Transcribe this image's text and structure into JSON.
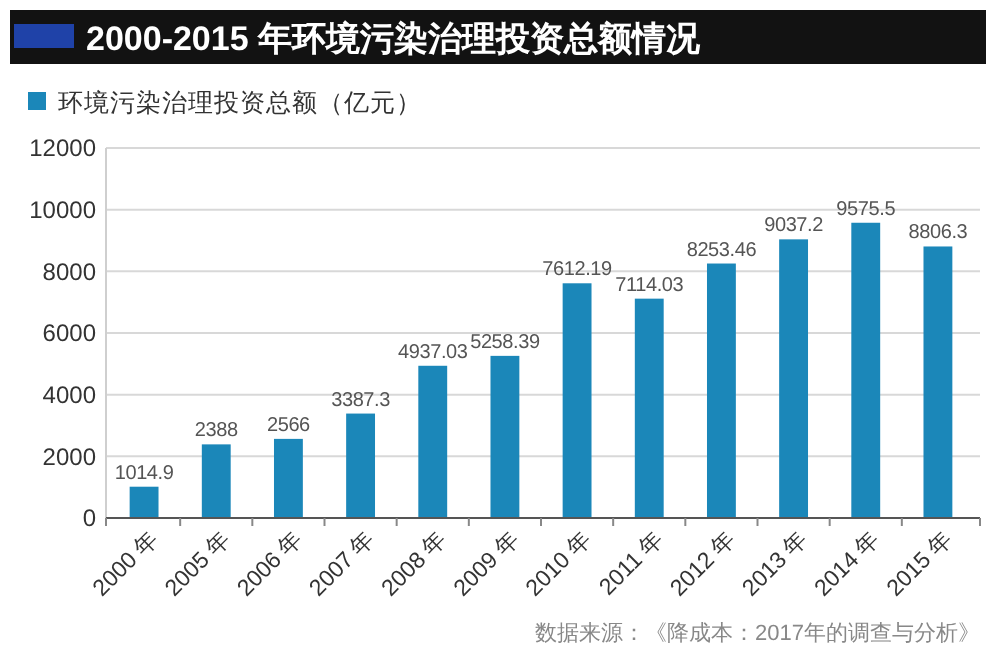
{
  "chart_data": {
    "type": "bar",
    "title": "2000-2015 年环境污染治理投资总额情况",
    "categories": [
      "2000 年",
      "2005 年",
      "2006 年",
      "2007 年",
      "2008 年",
      "2009 年",
      "2010 年",
      "2011 年",
      "2012 年",
      "2013 年",
      "2014 年",
      "2015 年"
    ],
    "series": [
      {
        "name": "环境污染治理投资总额（亿元）",
        "color": "#1b87b9",
        "values": [
          1014.9,
          2388,
          2566,
          3387.3,
          4937.03,
          5258.39,
          7612.19,
          7114.03,
          8253.46,
          9037.2,
          9575.5,
          8806.3
        ]
      }
    ],
    "ylim": [
      0,
      12000
    ],
    "yticks": [
      0,
      2000,
      4000,
      6000,
      8000,
      10000,
      12000
    ],
    "grid": "y",
    "legend": "top left",
    "data_labels": true,
    "annotations": [
      "数据来源：《降成本：2017年的调查与分析》"
    ]
  }
}
